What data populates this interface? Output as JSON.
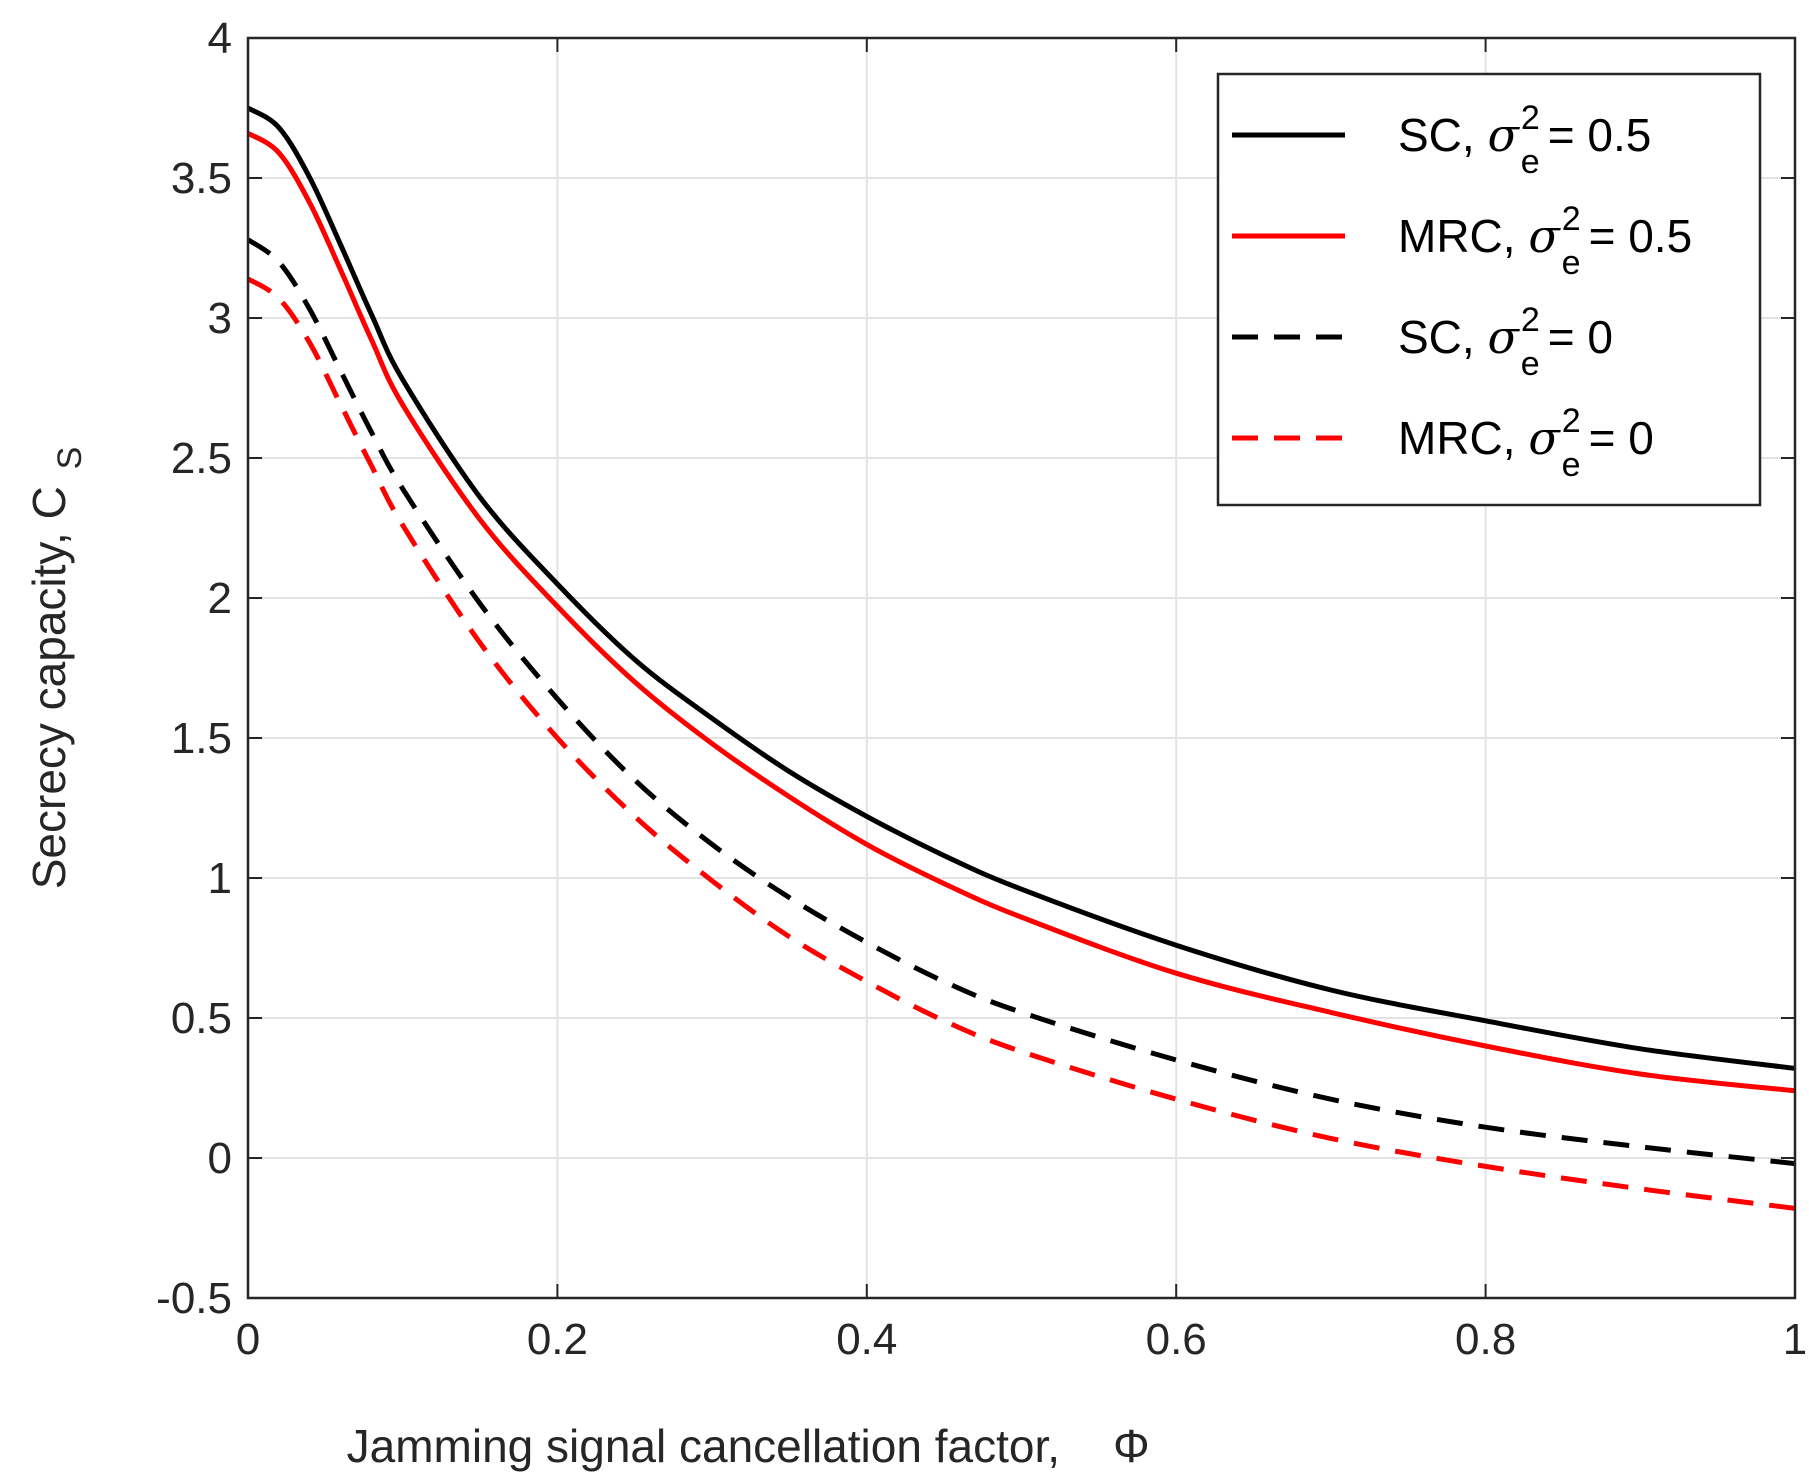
{
  "chart_data": {
    "type": "line",
    "title": "",
    "xlabel": "Jamming signal cancellation factor,",
    "xlabel_symbol": "Φ",
    "ylabel": "Secrecy capacity, C",
    "ylabel_subscript": "S",
    "xlim": [
      0,
      1
    ],
    "ylim": [
      -0.5,
      4
    ],
    "grid": true,
    "legend_position": "top-right",
    "xticks": [
      {
        "value": 0,
        "label": "0"
      },
      {
        "value": 0.2,
        "label": "0.2"
      },
      {
        "value": 0.4,
        "label": "0.4"
      },
      {
        "value": 0.6,
        "label": "0.6"
      },
      {
        "value": 0.8,
        "label": "0.8"
      },
      {
        "value": 1,
        "label": "1"
      }
    ],
    "yticks": [
      {
        "value": -0.5,
        "label": "-0.5"
      },
      {
        "value": 0,
        "label": "0"
      },
      {
        "value": 0.5,
        "label": "0.5"
      },
      {
        "value": 1,
        "label": "1"
      },
      {
        "value": 1.5,
        "label": "1.5"
      },
      {
        "value": 2,
        "label": "2"
      },
      {
        "value": 2.5,
        "label": "2.5"
      },
      {
        "value": 3,
        "label": "3"
      },
      {
        "value": 3.5,
        "label": "3.5"
      },
      {
        "value": 4,
        "label": "4"
      }
    ],
    "x": [
      0,
      0.02,
      0.04,
      0.06,
      0.08,
      0.1,
      0.15,
      0.2,
      0.25,
      0.3,
      0.35,
      0.4,
      0.45,
      0.5,
      0.6,
      0.7,
      0.8,
      0.9,
      1.0
    ],
    "series": [
      {
        "name": "SC, σe² = 0.5",
        "legend": {
          "prefix": "SC, ",
          "value": "= 0.5"
        },
        "color": "#000000",
        "dash": "solid",
        "values": [
          3.75,
          3.68,
          3.5,
          3.26,
          3.01,
          2.78,
          2.36,
          2.05,
          1.78,
          1.57,
          1.38,
          1.22,
          1.08,
          0.96,
          0.76,
          0.6,
          0.49,
          0.39,
          0.32
        ]
      },
      {
        "name": "MRC, σe² = 0.5",
        "legend": {
          "prefix": "MRC, ",
          "value": "= 0.5"
        },
        "color": "#ff0000",
        "dash": "solid",
        "values": [
          3.66,
          3.59,
          3.41,
          3.17,
          2.92,
          2.69,
          2.28,
          1.97,
          1.7,
          1.48,
          1.29,
          1.12,
          0.98,
          0.86,
          0.66,
          0.52,
          0.4,
          0.3,
          0.24
        ]
      },
      {
        "name": "SC, σe² = 0",
        "legend": {
          "prefix": "SC, ",
          "value": "= 0"
        },
        "color": "#000000",
        "dash": "dashed",
        "values": [
          3.28,
          3.2,
          3.03,
          2.81,
          2.59,
          2.39,
          1.98,
          1.64,
          1.35,
          1.12,
          0.93,
          0.77,
          0.63,
          0.52,
          0.35,
          0.21,
          0.11,
          0.04,
          -0.02
        ]
      },
      {
        "name": "MRC, σe² = 0",
        "legend": {
          "prefix": "MRC, ",
          "value": "= 0"
        },
        "color": "#ff0000",
        "dash": "dashed",
        "values": [
          3.14,
          3.07,
          2.91,
          2.69,
          2.47,
          2.26,
          1.84,
          1.5,
          1.22,
          0.99,
          0.79,
          0.63,
          0.49,
          0.38,
          0.21,
          0.07,
          -0.03,
          -0.11,
          -0.18
        ]
      }
    ]
  }
}
